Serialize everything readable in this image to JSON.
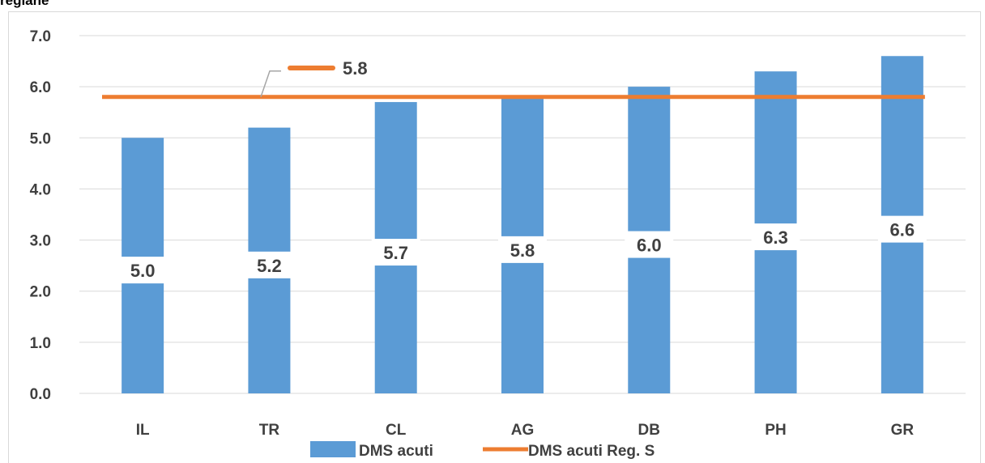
{
  "title": "regiane",
  "chart_data": {
    "type": "bar",
    "categories": [
      "IL",
      "TR",
      "CL",
      "AG",
      "DB",
      "PH",
      "GR"
    ],
    "series": [
      {
        "name": "DMS acuti",
        "type": "bar",
        "values": [
          5.0,
          5.2,
          5.7,
          5.8,
          6.0,
          6.3,
          6.6
        ],
        "color": "#5B9BD5"
      },
      {
        "name": "DMS acuti Reg. S",
        "type": "line",
        "values": [
          5.8,
          5.8,
          5.8,
          5.8,
          5.8,
          5.8,
          5.8
        ],
        "color": "#ED7D31"
      }
    ],
    "bar_labels": [
      "5.0",
      "5.2",
      "5.7",
      "5.8",
      "6.0",
      "6.3",
      "6.6"
    ],
    "line_label": "5.8",
    "y_ticks": [
      "0.0",
      "1.0",
      "2.0",
      "3.0",
      "4.0",
      "5.0",
      "6.0",
      "7.0"
    ],
    "ylim": [
      0,
      7
    ],
    "grid": true,
    "legend_position": "bottom",
    "xlabel": "",
    "ylabel": ""
  }
}
